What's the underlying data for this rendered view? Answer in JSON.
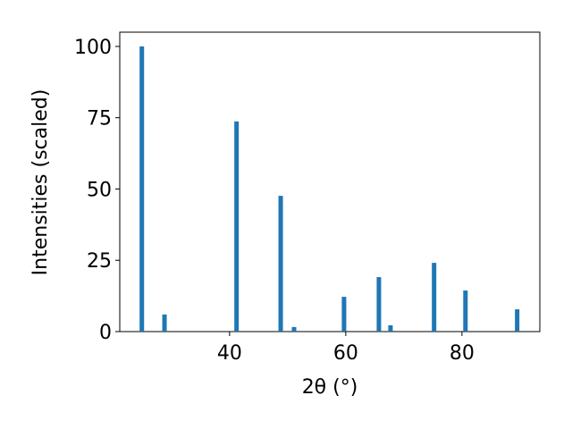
{
  "chart_data": {
    "type": "bar",
    "x_label": "2θ (°)",
    "y_label": "Intensities (scaled)",
    "x": [
      24.9,
      28.8,
      41.2,
      48.8,
      51.1,
      59.7,
      65.7,
      67.7,
      75.2,
      80.6,
      89.5
    ],
    "values": [
      100,
      6.0,
      73.7,
      47.6,
      1.6,
      12.2,
      19.1,
      2.2,
      24.1,
      14.4,
      7.8
    ],
    "color": "#1f77b4",
    "xlim": [
      21.1,
      93.4
    ],
    "xticks": [
      40,
      60,
      80
    ],
    "ylim": [
      0,
      105
    ],
    "yticks": [
      0,
      25,
      50,
      75,
      100
    ]
  }
}
